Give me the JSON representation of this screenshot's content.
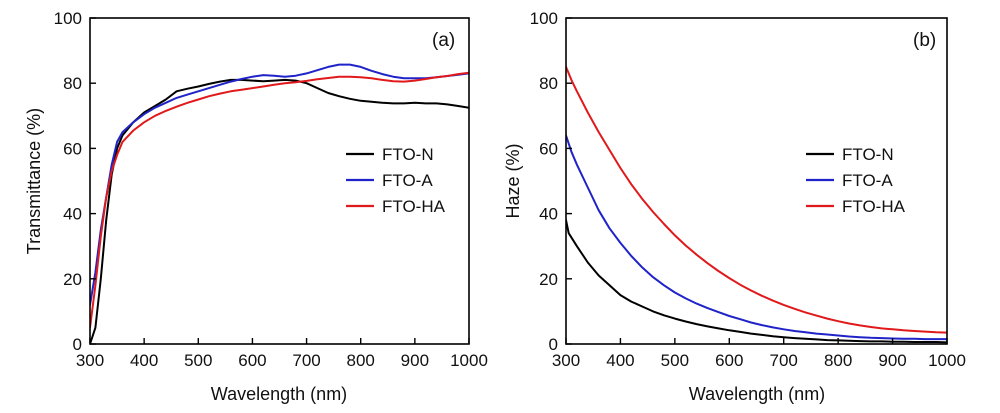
{
  "chart_data": [
    {
      "panel": "(a)",
      "type": "line",
      "xlabel": "Wavelength (nm)",
      "ylabel": "Transmittance (%)",
      "xlim": [
        300,
        1000
      ],
      "ylim": [
        0,
        100
      ],
      "xticks": [
        300,
        400,
        500,
        600,
        700,
        800,
        900,
        1000
      ],
      "yticks": [
        0,
        20,
        40,
        60,
        80,
        100
      ],
      "legend": "center-right",
      "series": [
        {
          "name": "FTO-N",
          "color": "#000000",
          "points": [
            [
              300,
              0
            ],
            [
              310,
              5
            ],
            [
              320,
              20
            ],
            [
              330,
              38
            ],
            [
              340,
              52
            ],
            [
              350,
              60
            ],
            [
              360,
              64
            ],
            [
              380,
              68
            ],
            [
              400,
              71
            ],
            [
              420,
              73
            ],
            [
              440,
              75
            ],
            [
              460,
              77.5
            ],
            [
              480,
              78.3
            ],
            [
              500,
              79
            ],
            [
              520,
              79.8
            ],
            [
              540,
              80.5
            ],
            [
              560,
              81
            ],
            [
              580,
              81
            ],
            [
              600,
              80.8
            ],
            [
              620,
              80.6
            ],
            [
              640,
              80.8
            ],
            [
              660,
              81
            ],
            [
              680,
              80.8
            ],
            [
              700,
              80
            ],
            [
              720,
              78.5
            ],
            [
              740,
              77
            ],
            [
              760,
              76
            ],
            [
              780,
              75.2
            ],
            [
              800,
              74.6
            ],
            [
              820,
              74.3
            ],
            [
              840,
              74
            ],
            [
              860,
              73.8
            ],
            [
              880,
              73.8
            ],
            [
              900,
              74
            ],
            [
              920,
              73.8
            ],
            [
              940,
              73.8
            ],
            [
              960,
              73.5
            ],
            [
              980,
              73
            ],
            [
              1000,
              72.5
            ]
          ]
        },
        {
          "name": "FTO-A",
          "color": "#1f23c8",
          "points": [
            [
              300,
              12
            ],
            [
              310,
              22
            ],
            [
              320,
              35
            ],
            [
              330,
              45
            ],
            [
              340,
              55
            ],
            [
              350,
              62
            ],
            [
              360,
              65
            ],
            [
              380,
              68
            ],
            [
              400,
              70.5
            ],
            [
              420,
              72.5
            ],
            [
              440,
              74
            ],
            [
              460,
              75.5
            ],
            [
              480,
              76.5
            ],
            [
              500,
              77.5
            ],
            [
              520,
              78.5
            ],
            [
              540,
              79.5
            ],
            [
              560,
              80.5
            ],
            [
              580,
              81.3
            ],
            [
              600,
              82
            ],
            [
              620,
              82.5
            ],
            [
              640,
              82.3
            ],
            [
              660,
              82
            ],
            [
              680,
              82.3
            ],
            [
              700,
              83
            ],
            [
              720,
              84
            ],
            [
              740,
              85
            ],
            [
              760,
              85.7
            ],
            [
              780,
              85.7
            ],
            [
              800,
              85
            ],
            [
              820,
              83.8
            ],
            [
              840,
              82.8
            ],
            [
              860,
              82
            ],
            [
              880,
              81.5
            ],
            [
              900,
              81.5
            ],
            [
              920,
              81.5
            ],
            [
              940,
              81.8
            ],
            [
              960,
              82.2
            ],
            [
              980,
              82.6
            ],
            [
              1000,
              83
            ]
          ]
        },
        {
          "name": "FTO-HA",
          "color": "#e0191b",
          "points": [
            [
              300,
              5
            ],
            [
              310,
              18
            ],
            [
              320,
              33
            ],
            [
              330,
              45
            ],
            [
              340,
              53
            ],
            [
              350,
              58
            ],
            [
              360,
              62
            ],
            [
              380,
              65.5
            ],
            [
              400,
              68
            ],
            [
              420,
              70
            ],
            [
              440,
              71.5
            ],
            [
              460,
              72.8
            ],
            [
              480,
              74
            ],
            [
              500,
              75
            ],
            [
              520,
              76
            ],
            [
              540,
              76.8
            ],
            [
              560,
              77.5
            ],
            [
              580,
              78
            ],
            [
              600,
              78.5
            ],
            [
              620,
              79
            ],
            [
              640,
              79.5
            ],
            [
              660,
              80
            ],
            [
              680,
              80.3
            ],
            [
              700,
              80.7
            ],
            [
              720,
              81.2
            ],
            [
              740,
              81.6
            ],
            [
              760,
              82
            ],
            [
              780,
              82
            ],
            [
              800,
              81.8
            ],
            [
              820,
              81.5
            ],
            [
              840,
              81
            ],
            [
              860,
              80.6
            ],
            [
              880,
              80.5
            ],
            [
              900,
              80.8
            ],
            [
              920,
              81.3
            ],
            [
              940,
              81.8
            ],
            [
              960,
              82.2
            ],
            [
              980,
              82.8
            ],
            [
              1000,
              83.2
            ]
          ]
        }
      ]
    },
    {
      "panel": "(b)",
      "type": "line",
      "xlabel": "Wavelength (nm)",
      "ylabel": "Haze (%)",
      "xlim": [
        300,
        1000
      ],
      "ylim": [
        0,
        100
      ],
      "xticks": [
        300,
        400,
        500,
        600,
        700,
        800,
        900,
        1000
      ],
      "yticks": [
        0,
        20,
        40,
        60,
        80,
        100
      ],
      "legend": "center-right",
      "series": [
        {
          "name": "FTO-N",
          "color": "#000000",
          "points": [
            [
              300,
              38
            ],
            [
              305,
              34
            ],
            [
              320,
              30
            ],
            [
              340,
              25
            ],
            [
              360,
              21
            ],
            [
              380,
              18
            ],
            [
              400,
              15
            ],
            [
              420,
              13
            ],
            [
              440,
              11.5
            ],
            [
              460,
              10
            ],
            [
              480,
              8.8
            ],
            [
              500,
              7.8
            ],
            [
              520,
              6.9
            ],
            [
              540,
              6.1
            ],
            [
              560,
              5.4
            ],
            [
              580,
              4.8
            ],
            [
              600,
              4.2
            ],
            [
              620,
              3.7
            ],
            [
              640,
              3.2
            ],
            [
              660,
              2.8
            ],
            [
              680,
              2.4
            ],
            [
              700,
              2.1
            ],
            [
              720,
              1.8
            ],
            [
              740,
              1.6
            ],
            [
              760,
              1.4
            ],
            [
              780,
              1.2
            ],
            [
              800,
              1.1
            ],
            [
              820,
              1
            ],
            [
              840,
              0.9
            ],
            [
              860,
              0.8
            ],
            [
              880,
              0.8
            ],
            [
              900,
              0.7
            ],
            [
              920,
              0.7
            ],
            [
              940,
              0.6
            ],
            [
              960,
              0.6
            ],
            [
              980,
              0.6
            ],
            [
              1000,
              0.5
            ]
          ]
        },
        {
          "name": "FTO-A",
          "color": "#1f23c8",
          "points": [
            [
              300,
              64
            ],
            [
              310,
              59
            ],
            [
              320,
              55
            ],
            [
              340,
              48
            ],
            [
              360,
              41
            ],
            [
              380,
              35.5
            ],
            [
              400,
              31
            ],
            [
              420,
              27
            ],
            [
              440,
              23.5
            ],
            [
              460,
              20.5
            ],
            [
              480,
              18
            ],
            [
              500,
              15.8
            ],
            [
              520,
              14
            ],
            [
              540,
              12.4
            ],
            [
              560,
              11
            ],
            [
              580,
              9.8
            ],
            [
              600,
              8.6
            ],
            [
              620,
              7.6
            ],
            [
              640,
              6.6
            ],
            [
              660,
              5.8
            ],
            [
              680,
              5.1
            ],
            [
              700,
              4.5
            ],
            [
              720,
              4
            ],
            [
              740,
              3.6
            ],
            [
              760,
              3.2
            ],
            [
              780,
              2.9
            ],
            [
              800,
              2.6
            ],
            [
              820,
              2.3
            ],
            [
              840,
              2.1
            ],
            [
              860,
              1.9
            ],
            [
              880,
              1.8
            ],
            [
              900,
              1.7
            ],
            [
              920,
              1.6
            ],
            [
              940,
              1.6
            ],
            [
              960,
              1.5
            ],
            [
              980,
              1.5
            ],
            [
              1000,
              1.5
            ]
          ]
        },
        {
          "name": "FTO-HA",
          "color": "#e0191b",
          "points": [
            [
              300,
              85
            ],
            [
              310,
              81
            ],
            [
              320,
              77.5
            ],
            [
              340,
              71
            ],
            [
              360,
              65
            ],
            [
              380,
              59.5
            ],
            [
              400,
              54
            ],
            [
              420,
              49
            ],
            [
              440,
              44.5
            ],
            [
              460,
              40.5
            ],
            [
              480,
              36.8
            ],
            [
              500,
              33.3
            ],
            [
              520,
              30.2
            ],
            [
              540,
              27.4
            ],
            [
              560,
              24.8
            ],
            [
              580,
              22.4
            ],
            [
              600,
              20.2
            ],
            [
              620,
              18.2
            ],
            [
              640,
              16.4
            ],
            [
              660,
              14.8
            ],
            [
              680,
              13.3
            ],
            [
              700,
              12
            ],
            [
              720,
              10.8
            ],
            [
              740,
              9.7
            ],
            [
              760,
              8.7
            ],
            [
              780,
              7.8
            ],
            [
              800,
              7
            ],
            [
              820,
              6.3
            ],
            [
              840,
              5.7
            ],
            [
              860,
              5.2
            ],
            [
              880,
              4.8
            ],
            [
              900,
              4.5
            ],
            [
              920,
              4.2
            ],
            [
              940,
              4
            ],
            [
              960,
              3.8
            ],
            [
              980,
              3.6
            ],
            [
              1000,
              3.5
            ]
          ]
        }
      ]
    }
  ]
}
